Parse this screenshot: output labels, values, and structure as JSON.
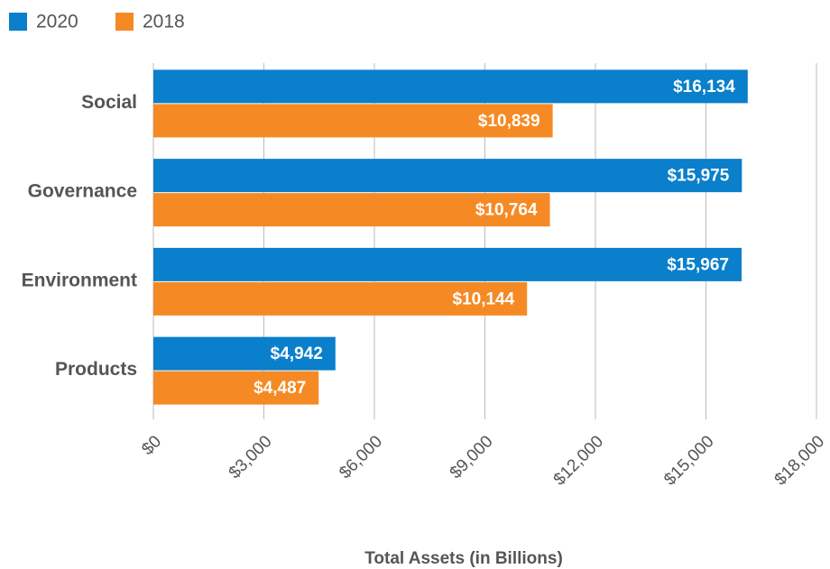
{
  "chart_data": {
    "type": "bar",
    "orientation": "horizontal",
    "x_label": "Total Assets (in Billions)",
    "categories": [
      "Social",
      "Governance",
      "Environment",
      "Products"
    ],
    "series": [
      {
        "name": "2020",
        "color": "#0a7fcb",
        "values": [
          16134,
          15975,
          15967,
          4942
        ],
        "value_labels": [
          "$16,134",
          "$15,975",
          "$15,967",
          "$4,942"
        ]
      },
      {
        "name": "2018",
        "color": "#f58a24",
        "values": [
          10839,
          10764,
          10144,
          4487
        ],
        "value_labels": [
          "$10,839",
          "$10,764",
          "$10,144",
          "$4,487"
        ]
      }
    ],
    "xlim": [
      0,
      18000
    ],
    "xticks": [
      {
        "value": 0,
        "label": "$0"
      },
      {
        "value": 3000,
        "label": "$3,000"
      },
      {
        "value": 6000,
        "label": "$6,000"
      },
      {
        "value": 9000,
        "label": "$9,000"
      },
      {
        "value": 12000,
        "label": "$12,000"
      },
      {
        "value": 15000,
        "label": "$15,000"
      },
      {
        "value": 18000,
        "label": "$18,000"
      }
    ],
    "grid": true,
    "legend": "top-left"
  }
}
